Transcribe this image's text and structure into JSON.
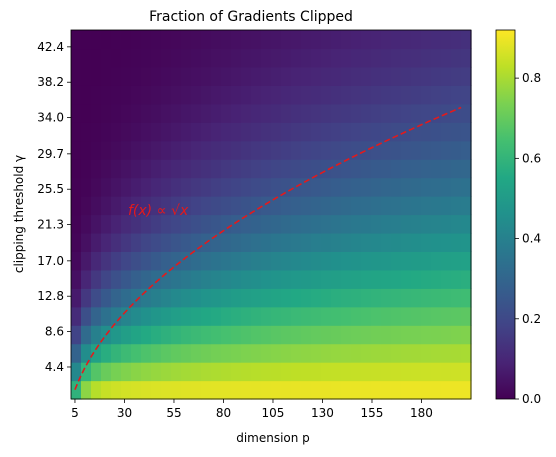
{
  "chart_data": {
    "type": "heatmap",
    "title": "Fraction of Gradients Clipped",
    "xlabel": "dimension p",
    "ylabel": "clipping threshold γ",
    "x_ticks": [
      "5",
      "30",
      "55",
      "80",
      "105",
      "130",
      "155",
      "180"
    ],
    "y_ticks": [
      "4.4",
      "8.6",
      "12.8",
      "17.0",
      "21.3",
      "25.5",
      "29.7",
      "34.0",
      "38.2",
      "42.4"
    ],
    "x_range": [
      3,
      205
    ],
    "y_range": [
      0.6,
      44.4
    ],
    "colormap": "viridis",
    "colorbar_range": [
      0.0,
      0.92
    ],
    "colorbar_ticks": [
      "0.0",
      "0.2",
      "0.4",
      "0.6",
      "0.8"
    ],
    "grid_columns": 40,
    "grid_rows": 20,
    "annotation": {
      "text": "f(x) ∝ √x",
      "color": "#e31a1c",
      "curve": {
        "function": "sqrt",
        "style": "dashed",
        "x_start": 5,
        "x_end": 200,
        "y_at_start": 1.7,
        "y_at_end": 35.2
      }
    },
    "approximate_values": "fraction ≈ 0.92 at γ≈2 for large p, ≈0.72 at γ≈4.4, decaying toward 0 as γ increases; decay slower at larger p"
  }
}
